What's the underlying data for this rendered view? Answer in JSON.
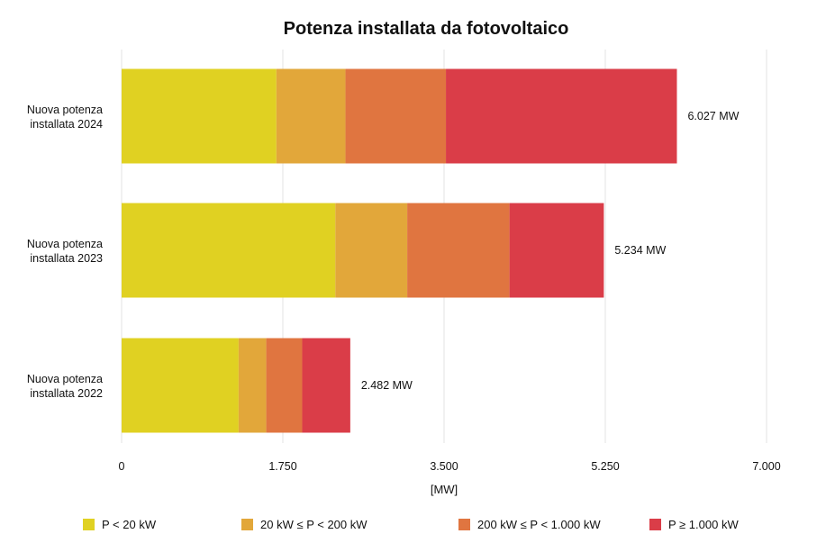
{
  "chart_data": {
    "type": "bar",
    "orientation": "horizontal",
    "stacked": true,
    "title": "Potenza installata da fotovoltaico",
    "xlabel": "[MW]",
    "ylabel": "",
    "xlim": [
      0,
      7000
    ],
    "x_ticks": [
      0,
      1750,
      3500,
      5250,
      7000
    ],
    "x_tick_labels": [
      "0",
      "1.750",
      "3.500",
      "5.250",
      "7.000"
    ],
    "categories": [
      [
        "Nuova potenza",
        "installata 2024"
      ],
      [
        "Nuova potenza",
        "installata 2023"
      ],
      [
        "Nuova potenza",
        "installata 2022"
      ]
    ],
    "series": [
      {
        "name": "P < 20 kW",
        "color": "#e0d122",
        "values": [
          1680,
          2320,
          1270
        ]
      },
      {
        "name": "20 kW ≤ P < 200 kW",
        "color": "#e2a73a",
        "values": [
          750,
          780,
          300
        ]
      },
      {
        "name": "200 kW ≤ P < 1.000 kW",
        "color": "#e07540",
        "values": [
          1090,
          1110,
          390
        ]
      },
      {
        "name": "P ≥ 1.000 kW",
        "color": "#da3d48",
        "values": [
          2507,
          1024,
          522
        ]
      }
    ],
    "totals": [
      6027,
      5234,
      2482
    ],
    "total_labels": [
      "6.027 MW",
      "5.234 MW",
      "2.482 MW"
    ],
    "grid": true,
    "legend_position": "bottom"
  }
}
